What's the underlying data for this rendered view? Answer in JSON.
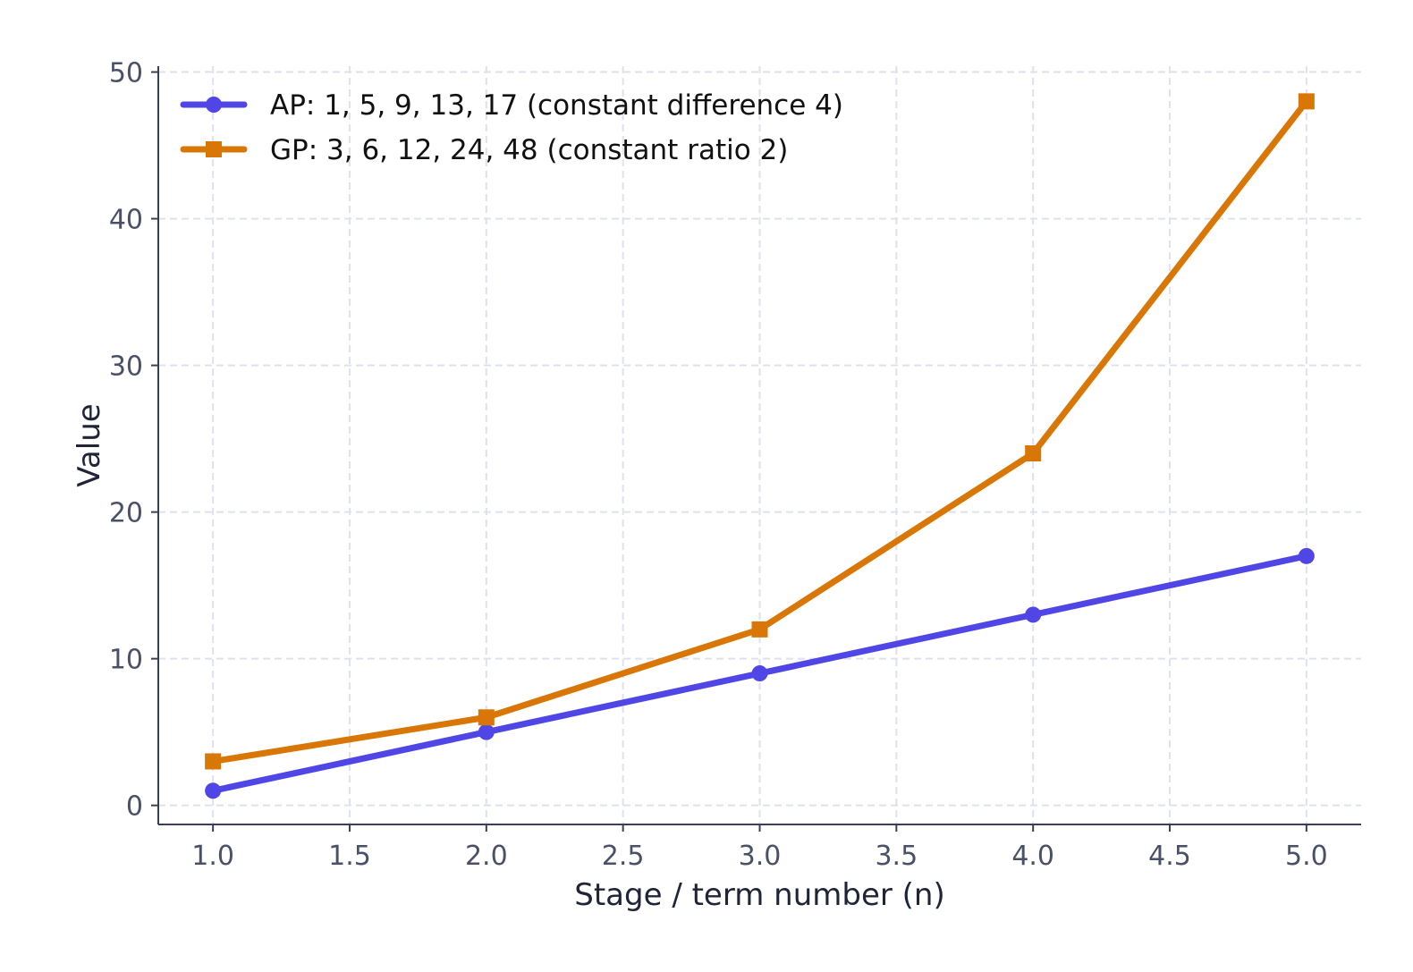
{
  "chart_data": {
    "type": "line",
    "title": "",
    "xlabel": "Stage / term number (n)",
    "ylabel": "Value",
    "x": [
      1,
      2,
      3,
      4,
      5
    ],
    "xlim": [
      0.8,
      5.2
    ],
    "ylim": [
      -1.3,
      50.4
    ],
    "xticks": [
      1.0,
      1.5,
      2.0,
      2.5,
      3.0,
      3.5,
      4.0,
      4.5,
      5.0
    ],
    "xtick_labels": [
      "1.0",
      "1.5",
      "2.0",
      "2.5",
      "3.0",
      "3.5",
      "4.0",
      "4.5",
      "5.0"
    ],
    "yticks": [
      0,
      10,
      20,
      30,
      40,
      50
    ],
    "ytick_labels": [
      "0",
      "10",
      "20",
      "30",
      "40",
      "50"
    ],
    "grid": true,
    "legend_position": "top-left",
    "series": [
      {
        "name": "AP: 1, 5, 9, 13, 17 (constant difference 4)",
        "values": [
          1,
          5,
          9,
          13,
          17
        ],
        "color": "#4f46e5",
        "marker": "circle"
      },
      {
        "name": "GP: 3, 6, 12, 24, 48 (constant ratio 2)",
        "values": [
          3,
          6,
          12,
          24,
          48
        ],
        "color": "#d97706",
        "marker": "square"
      }
    ]
  }
}
